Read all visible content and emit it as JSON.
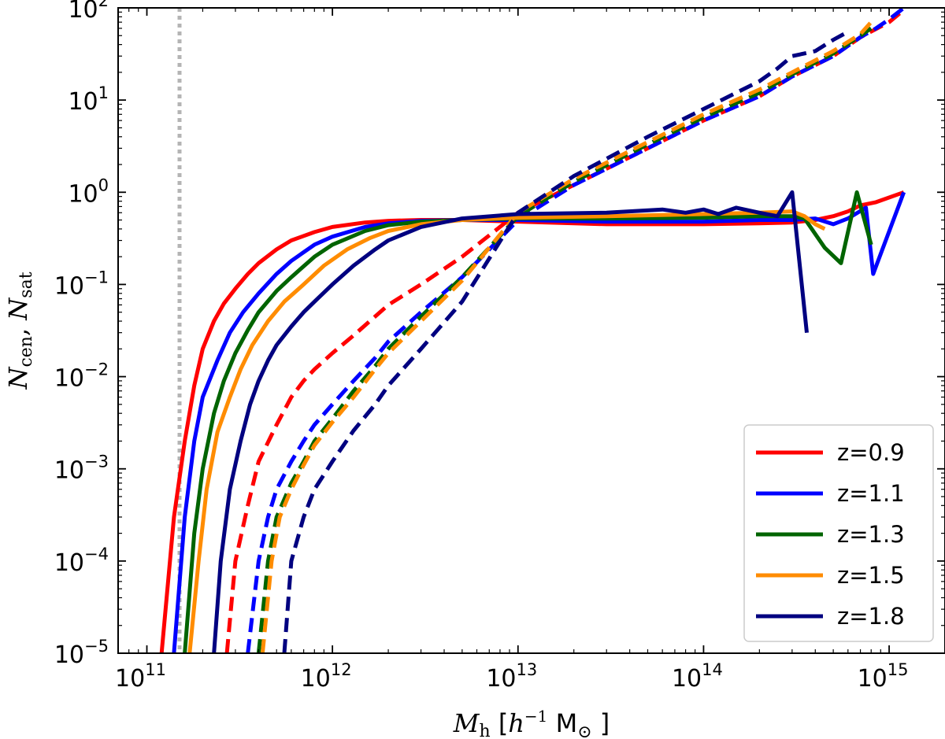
{
  "chart_data": {
    "type": "line",
    "x_scale": "log",
    "y_scale": "log",
    "xlim": [
      70000000000,
      2000000000000000
    ],
    "ylim": [
      1e-05,
      100
    ],
    "xlabel": {
      "main": "M",
      "sub": "h",
      "unit_open": " [",
      "h": "h",
      "h_exp": "−1",
      "msun": " M",
      "msun_sub": "⊙",
      "unit_close": " ]"
    },
    "ylabel": {
      "n1": "N",
      "n1_sub": "cen",
      "sep": ", ",
      "n2": "N",
      "n2_sub": "sat"
    },
    "x_ticks": [
      {
        "value": 100000000000,
        "base": "10",
        "exp": "11"
      },
      {
        "value": 1000000000000,
        "base": "10",
        "exp": "12"
      },
      {
        "value": 10000000000000,
        "base": "10",
        "exp": "13"
      },
      {
        "value": 100000000000000,
        "base": "10",
        "exp": "14"
      },
      {
        "value": 1000000000000000,
        "base": "10",
        "exp": "15"
      }
    ],
    "y_ticks": [
      {
        "value": 1e-05,
        "base": "10",
        "exp": "−5"
      },
      {
        "value": 0.0001,
        "base": "10",
        "exp": "−4"
      },
      {
        "value": 0.001,
        "base": "10",
        "exp": "−3"
      },
      {
        "value": 0.01,
        "base": "10",
        "exp": "−2"
      },
      {
        "value": 0.1,
        "base": "10",
        "exp": "−1"
      },
      {
        "value": 1,
        "base": "10",
        "exp": "0"
      },
      {
        "value": 10,
        "base": "10",
        "exp": "1"
      },
      {
        "value": 100,
        "base": "10",
        "exp": "2"
      }
    ],
    "vertical_reference_line": {
      "x": 150000000000,
      "style": "dotted",
      "color": "#b4b4b4"
    },
    "legend_position": "lower-right",
    "series": [
      {
        "name": "z=0.9",
        "color": "#ff0000",
        "central": [
          [
            120000000000.0,
            1e-05
          ],
          [
            140000000000.0,
            0.0003
          ],
          [
            160000000000.0,
            0.002
          ],
          [
            180000000000.0,
            0.008
          ],
          [
            200000000000.0,
            0.02
          ],
          [
            230000000000.0,
            0.04
          ],
          [
            260000000000.0,
            0.062
          ],
          [
            300000000000.0,
            0.09
          ],
          [
            350000000000.0,
            0.13
          ],
          [
            400000000000.0,
            0.17
          ],
          [
            500000000000.0,
            0.24
          ],
          [
            600000000000.0,
            0.3
          ],
          [
            800000000000.0,
            0.37
          ],
          [
            1000000000000.0,
            0.42
          ],
          [
            1500000000000.0,
            0.47
          ],
          [
            2000000000000.0,
            0.49
          ],
          [
            3000000000000.0,
            0.5
          ],
          [
            5000000000000.0,
            0.5
          ],
          [
            10000000000000.0,
            0.48
          ],
          [
            30000000000000.0,
            0.45
          ],
          [
            100000000000000.0,
            0.45
          ],
          [
            200000000000000.0,
            0.46
          ],
          [
            300000000000000.0,
            0.47
          ],
          [
            400000000000000.0,
            0.5
          ],
          [
            500000000000000.0,
            0.55
          ],
          [
            600000000000000.0,
            0.62
          ],
          [
            700000000000000.0,
            0.72
          ],
          [
            850000000000000.0,
            0.78
          ],
          [
            1200000000000000.0,
            1.0
          ]
        ],
        "satellite": [
          [
            270000000000.0,
            1e-05
          ],
          [
            300000000000.0,
            0.0001
          ],
          [
            350000000000.0,
            0.0004
          ],
          [
            400000000000.0,
            0.0012
          ],
          [
            500000000000.0,
            0.003
          ],
          [
            600000000000.0,
            0.006
          ],
          [
            700000000000.0,
            0.009
          ],
          [
            800000000000.0,
            0.012
          ],
          [
            1000000000000.0,
            0.018
          ],
          [
            1300000000000.0,
            0.028
          ],
          [
            1700000000000.0,
            0.045
          ],
          [
            2000000000000.0,
            0.06
          ],
          [
            3000000000000.0,
            0.1
          ],
          [
            5000000000000.0,
            0.2
          ],
          [
            10000000000000.0,
            0.6
          ],
          [
            20000000000000.0,
            1.2
          ],
          [
            50000000000000.0,
            3
          ],
          [
            100000000000000.0,
            6
          ],
          [
            200000000000000.0,
            11
          ],
          [
            300000000000000.0,
            18
          ],
          [
            500000000000000.0,
            30
          ],
          [
            700000000000000.0,
            48
          ],
          [
            1000000000000000.0,
            70
          ],
          [
            1200000000000000.0,
            95
          ]
        ]
      },
      {
        "name": "z=1.1",
        "color": "#0000ff",
        "central": [
          [
            140000000000.0,
            1e-05
          ],
          [
            160000000000.0,
            0.0003
          ],
          [
            180000000000.0,
            0.002
          ],
          [
            200000000000.0,
            0.006
          ],
          [
            240000000000.0,
            0.015
          ],
          [
            280000000000.0,
            0.03
          ],
          [
            330000000000.0,
            0.05
          ],
          [
            400000000000.0,
            0.08
          ],
          [
            500000000000.0,
            0.13
          ],
          [
            600000000000.0,
            0.18
          ],
          [
            800000000000.0,
            0.27
          ],
          [
            1000000000000.0,
            0.33
          ],
          [
            1500000000000.0,
            0.42
          ],
          [
            2000000000000.0,
            0.46
          ],
          [
            3000000000000.0,
            0.49
          ],
          [
            5000000000000.0,
            0.5
          ],
          [
            10000000000000.0,
            0.5
          ],
          [
            30000000000000.0,
            0.48
          ],
          [
            100000000000000.0,
            0.48
          ],
          [
            200000000000000.0,
            0.5
          ],
          [
            300000000000000.0,
            0.5
          ],
          [
            400000000000000.0,
            0.52
          ],
          [
            500000000000000.0,
            0.45
          ],
          [
            600000000000000.0,
            0.52
          ],
          [
            750000000000000.0,
            0.68
          ],
          [
            820000000000000.0,
            0.13
          ],
          [
            1200000000000000.0,
            1.0
          ]
        ],
        "satellite": [
          [
            350000000000.0,
            1e-05
          ],
          [
            400000000000.0,
            0.0001
          ],
          [
            450000000000.0,
            0.0003
          ],
          [
            500000000000.0,
            0.0006
          ],
          [
            600000000000.0,
            0.0012
          ],
          [
            700000000000.0,
            0.002
          ],
          [
            800000000000.0,
            0.003
          ],
          [
            1000000000000.0,
            0.005
          ],
          [
            1300000000000.0,
            0.009
          ],
          [
            1700000000000.0,
            0.016
          ],
          [
            2000000000000.0,
            0.024
          ],
          [
            3000000000000.0,
            0.05
          ],
          [
            5000000000000.0,
            0.12
          ],
          [
            10000000000000.0,
            0.5
          ],
          [
            20000000000000.0,
            1.2
          ],
          [
            50000000000000.0,
            3
          ],
          [
            100000000000000.0,
            6
          ],
          [
            200000000000000.0,
            11
          ],
          [
            300000000000000.0,
            18
          ],
          [
            500000000000000.0,
            30
          ],
          [
            700000000000000.0,
            48
          ],
          [
            850000000000000.0,
            60
          ],
          [
            1000000000000000.0,
            75
          ],
          [
            1200000000000000.0,
            100
          ]
        ]
      },
      {
        "name": "z=1.3",
        "color": "#006400",
        "central": [
          [
            160000000000.0,
            1e-05
          ],
          [
            180000000000.0,
            0.0002
          ],
          [
            200000000000.0,
            0.001
          ],
          [
            230000000000.0,
            0.004
          ],
          [
            260000000000.0,
            0.009
          ],
          [
            300000000000.0,
            0.018
          ],
          [
            350000000000.0,
            0.032
          ],
          [
            400000000000.0,
            0.05
          ],
          [
            500000000000.0,
            0.085
          ],
          [
            600000000000.0,
            0.12
          ],
          [
            800000000000.0,
            0.2
          ],
          [
            1000000000000.0,
            0.27
          ],
          [
            1500000000000.0,
            0.38
          ],
          [
            2000000000000.0,
            0.44
          ],
          [
            3000000000000.0,
            0.48
          ],
          [
            5000000000000.0,
            0.5
          ],
          [
            10000000000000.0,
            0.52
          ],
          [
            30000000000000.0,
            0.52
          ],
          [
            100000000000000.0,
            0.53
          ],
          [
            200000000000000.0,
            0.55
          ],
          [
            300000000000000.0,
            0.55
          ],
          [
            350000000000000.0,
            0.52
          ],
          [
            450000000000000.0,
            0.25
          ],
          [
            550000000000000.0,
            0.17
          ],
          [
            670000000000000.0,
            1.0
          ],
          [
            800000000000000.0,
            0.27
          ]
        ],
        "satellite": [
          [
            400000000000.0,
            1e-05
          ],
          [
            450000000000.0,
            0.0001
          ],
          [
            500000000000.0,
            0.0003
          ],
          [
            600000000000.0,
            0.0007
          ],
          [
            700000000000.0,
            0.0012
          ],
          [
            800000000000.0,
            0.002
          ],
          [
            1000000000000.0,
            0.0035
          ],
          [
            1300000000000.0,
            0.007
          ],
          [
            1700000000000.0,
            0.013
          ],
          [
            2000000000000.0,
            0.02
          ],
          [
            3000000000000.0,
            0.045
          ],
          [
            5000000000000.0,
            0.12
          ],
          [
            10000000000000.0,
            0.55
          ],
          [
            20000000000000.0,
            1.3
          ],
          [
            50000000000000.0,
            3.3
          ],
          [
            100000000000000.0,
            6.5
          ],
          [
            200000000000000.0,
            12
          ],
          [
            300000000000000.0,
            19
          ],
          [
            500000000000000.0,
            32
          ],
          [
            700000000000000.0,
            50
          ],
          [
            800000000000000.0,
            60
          ]
        ]
      },
      {
        "name": "z=1.5",
        "color": "#ff8c00",
        "central": [
          [
            170000000000.0,
            1e-05
          ],
          [
            190000000000.0,
            0.0001
          ],
          [
            210000000000.0,
            0.0006
          ],
          [
            240000000000.0,
            0.0025
          ],
          [
            280000000000.0,
            0.006
          ],
          [
            320000000000.0,
            0.012
          ],
          [
            370000000000.0,
            0.022
          ],
          [
            450000000000.0,
            0.04
          ],
          [
            550000000000.0,
            0.065
          ],
          [
            700000000000.0,
            0.1
          ],
          [
            900000000000.0,
            0.16
          ],
          [
            1200000000000.0,
            0.24
          ],
          [
            1600000000000.0,
            0.32
          ],
          [
            2000000000000.0,
            0.38
          ],
          [
            3000000000000.0,
            0.45
          ],
          [
            5000000000000.0,
            0.5
          ],
          [
            10000000000000.0,
            0.53
          ],
          [
            30000000000000.0,
            0.55
          ],
          [
            100000000000000.0,
            0.58
          ],
          [
            200000000000000.0,
            0.6
          ],
          [
            300000000000000.0,
            0.62
          ],
          [
            350000000000000.0,
            0.55
          ],
          [
            400000000000000.0,
            0.45
          ],
          [
            450000000000000.0,
            0.4
          ]
        ],
        "satellite": [
          [
            420000000000.0,
            1e-05
          ],
          [
            470000000000.0,
            0.0001
          ],
          [
            520000000000.0,
            0.0003
          ],
          [
            600000000000.0,
            0.0006
          ],
          [
            700000000000.0,
            0.0011
          ],
          [
            800000000000.0,
            0.0018
          ],
          [
            1000000000000.0,
            0.0032
          ],
          [
            1300000000000.0,
            0.006
          ],
          [
            1700000000000.0,
            0.012
          ],
          [
            2000000000000.0,
            0.018
          ],
          [
            3000000000000.0,
            0.04
          ],
          [
            5000000000000.0,
            0.11
          ],
          [
            10000000000000.0,
            0.6
          ],
          [
            20000000000000.0,
            1.4
          ],
          [
            50000000000000.0,
            3.5
          ],
          [
            100000000000000.0,
            7
          ],
          [
            200000000000000.0,
            13
          ],
          [
            300000000000000.0,
            20
          ],
          [
            500000000000000.0,
            34
          ],
          [
            700000000000000.0,
            52
          ],
          [
            800000000000000.0,
            70
          ]
        ]
      },
      {
        "name": "z=1.8",
        "color": "#000080",
        "central": [
          [
            230000000000.0,
            1e-05
          ],
          [
            250000000000.0,
            0.0001
          ],
          [
            280000000000.0,
            0.0006
          ],
          [
            320000000000.0,
            0.002
          ],
          [
            360000000000.0,
            0.005
          ],
          [
            400000000000.0,
            0.009
          ],
          [
            450000000000.0,
            0.015
          ],
          [
            500000000000.0,
            0.022
          ],
          [
            600000000000.0,
            0.035
          ],
          [
            700000000000.0,
            0.05
          ],
          [
            800000000000.0,
            0.065
          ],
          [
            1000000000000.0,
            0.1
          ],
          [
            1300000000000.0,
            0.16
          ],
          [
            1700000000000.0,
            0.24
          ],
          [
            2000000000000.0,
            0.3
          ],
          [
            3000000000000.0,
            0.42
          ],
          [
            5000000000000.0,
            0.52
          ],
          [
            10000000000000.0,
            0.58
          ],
          [
            30000000000000.0,
            0.6
          ],
          [
            60000000000000.0,
            0.65
          ],
          [
            80000000000000.0,
            0.6
          ],
          [
            100000000000000.0,
            0.65
          ],
          [
            120000000000000.0,
            0.58
          ],
          [
            150000000000000.0,
            0.68
          ],
          [
            200000000000000.0,
            0.6
          ],
          [
            250000000000000.0,
            0.55
          ],
          [
            300000000000000.0,
            1.0
          ],
          [
            360000000000000.0,
            0.03
          ]
        ],
        "satellite": [
          [
            550000000000.0,
            1e-05
          ],
          [
            600000000000.0,
            0.0001
          ],
          [
            700000000000.0,
            0.0003
          ],
          [
            800000000000.0,
            0.0006
          ],
          [
            1000000000000.0,
            0.0012
          ],
          [
            1300000000000.0,
            0.0026
          ],
          [
            1700000000000.0,
            0.005
          ],
          [
            2000000000000.0,
            0.008
          ],
          [
            3000000000000.0,
            0.02
          ],
          [
            5000000000000.0,
            0.065
          ],
          [
            10000000000000.0,
            0.6
          ],
          [
            20000000000000.0,
            1.5
          ],
          [
            50000000000000.0,
            4
          ],
          [
            100000000000000.0,
            8
          ],
          [
            200000000000000.0,
            16
          ],
          [
            250000000000000.0,
            22
          ],
          [
            300000000000000.0,
            30
          ],
          [
            400000000000000.0,
            34
          ],
          [
            500000000000000.0,
            45
          ],
          [
            600000000000000.0,
            55
          ]
        ]
      }
    ]
  }
}
